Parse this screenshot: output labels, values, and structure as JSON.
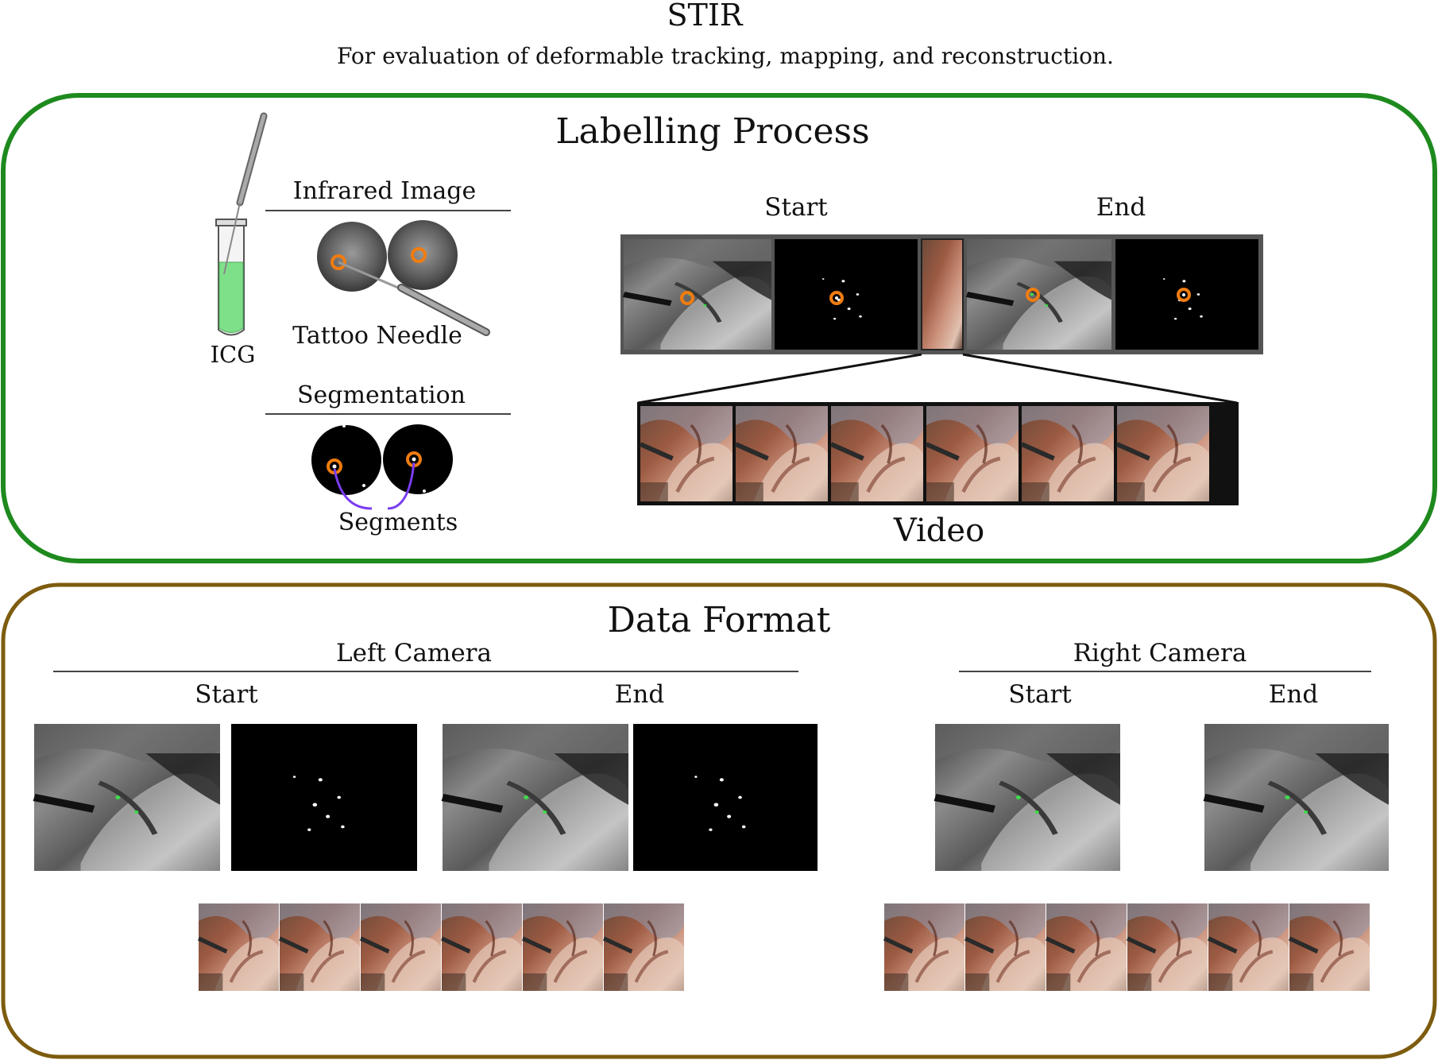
{
  "header": {
    "title": "STIR",
    "subtitle": "For evaluation of deformable tracking, mapping, and reconstruction."
  },
  "labelling": {
    "title": "Labelling Process",
    "infrared_label": "Infrared Image",
    "needle_label": "Tattoo Needle",
    "icg_label": "ICG",
    "segmentation_label": "Segmentation",
    "segments_label": "Segments",
    "start_label": "Start",
    "end_label": "End",
    "video_label": "Video"
  },
  "data_format": {
    "title": "Data Format",
    "left_camera": "Left Camera",
    "right_camera": "Right Camera",
    "left_start": "Start",
    "left_end": "End",
    "right_start": "Start",
    "right_end": "End"
  },
  "colors": {
    "labelling_border": "#1e8a1e",
    "data_format_border": "#7d5c0e",
    "marker": "#f07c10",
    "icg": "#7fe08a",
    "segment_line": "#7a3df0"
  }
}
